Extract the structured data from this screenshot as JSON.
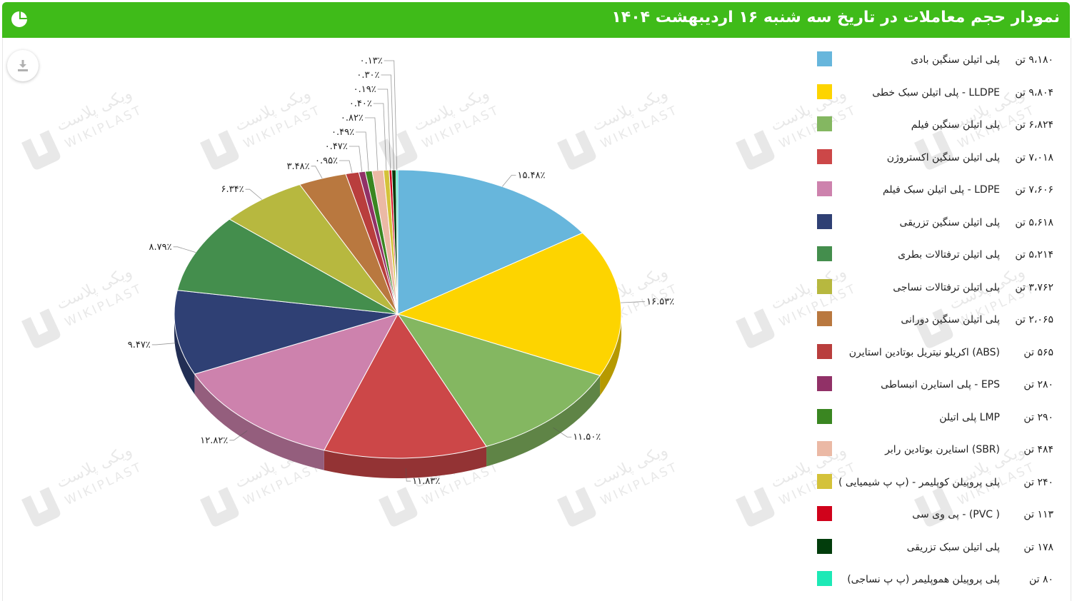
{
  "header": {
    "title": "نمودار حجم معاملات در تاریخ سه شنبه ۱۶ اردیبهشت ۱۴۰۴",
    "background": "#3fbb19"
  },
  "toolbar": {
    "download_icon": "download-icon"
  },
  "watermark": {
    "brand_fa": "ویکی پلاست",
    "brand_en": "WIKIPLAST"
  },
  "chart_data": {
    "type": "pie",
    "style": "3d",
    "slices": [
      {
        "label": "پلی اتیلن سنگین بادی",
        "value_text": "۹،۱۸۰ تن",
        "percent_text": "۱۵.۴۸٪",
        "percent": 15.48,
        "color": "#67b6dc"
      },
      {
        "label": "LLDPE - پلی اتیلن سبک خطی",
        "value_text": "۹،۸۰۴ تن",
        "percent_text": "۱۶.۵۳٪",
        "percent": 16.53,
        "color": "#fdd400"
      },
      {
        "label": "پلی اتیلن سنگین فیلم",
        "value_text": "۶،۸۲۴ تن",
        "percent_text": "۱۱.۵۰٪",
        "percent": 11.5,
        "color": "#84b761"
      },
      {
        "label": "پلی اتیلن سنگین اکستروژن",
        "value_text": "۷،۰۱۸ تن",
        "percent_text": "۱۱.۸۳٪",
        "percent": 11.83,
        "color": "#cc4748"
      },
      {
        "label": "LDPE - پلی اتیلن سبک فیلم",
        "value_text": "۷،۶۰۶ تن",
        "percent_text": "۱۲.۸۲٪",
        "percent": 12.82,
        "color": "#cd82ad"
      },
      {
        "label": "پلی اتیلن سنگین تزریقی",
        "value_text": "۵،۶۱۸ تن",
        "percent_text": "۹.۴۷٪",
        "percent": 9.47,
        "color": "#2f4074"
      },
      {
        "label": "پلی اتیلن ترفتالات بطری",
        "value_text": "۵،۲۱۴ تن",
        "percent_text": "۸.۷۹٪",
        "percent": 8.79,
        "color": "#448e4d"
      },
      {
        "label": "پلی اتیلن ترفتالات نساجی",
        "value_text": "۳،۷۶۲ تن",
        "percent_text": "۶.۳۴٪",
        "percent": 6.34,
        "color": "#b7b83f"
      },
      {
        "label": "پلی اتیلن سنگین دورانی",
        "value_text": "۲،۰۶۵ تن",
        "percent_text": "۳.۴۸٪",
        "percent": 3.48,
        "color": "#b9783f"
      },
      {
        "label": "(ABS) اکریلو نیتریل بوتادین استایرن",
        "value_text": "۵۶۵ تن",
        "percent_text": "۰.۹۵٪",
        "percent": 0.95,
        "color": "#b93e3d"
      },
      {
        "label": "EPS - پلی استایرن انبساطی",
        "value_text": "۲۸۰ تن",
        "percent_text": "۰.۴۷٪",
        "percent": 0.47,
        "color": "#913167"
      },
      {
        "label": "LMP پلی اتیلن",
        "value_text": "۲۹۰ تن",
        "percent_text": "۰.۴۹٪",
        "percent": 0.49,
        "color": "#3a8621"
      },
      {
        "label": "(SBR) استایرن بوتادین رابر",
        "value_text": "۴۸۴ تن",
        "percent_text": "۰.۸۲٪",
        "percent": 0.82,
        "color": "#ebb9a5"
      },
      {
        "label": "پلی پروپیلن کوپلیمر - (پ پ شیمیایی )",
        "value_text": "۲۴۰ تن",
        "percent_text": "۰.۴۰٪",
        "percent": 0.4,
        "color": "#d4c23a"
      },
      {
        "label": "( PVC) - پی وی سی",
        "value_text": "۱۱۳ تن",
        "percent_text": "۰.۱۹٪",
        "percent": 0.19,
        "color": "#d0021b"
      },
      {
        "label": "پلی اتیلن سبک تزریقی",
        "value_text": "۱۷۸ تن",
        "percent_text": "۰.۳۰٪",
        "percent": 0.3,
        "color": "#023d0c"
      },
      {
        "label": "پلی پروپیلن هموپلیمر (پ پ نساجی)",
        "value_text": "۸۰ تن",
        "percent_text": "۰.۱۳٪",
        "percent": 0.13,
        "color": "#1de9b6"
      }
    ]
  }
}
